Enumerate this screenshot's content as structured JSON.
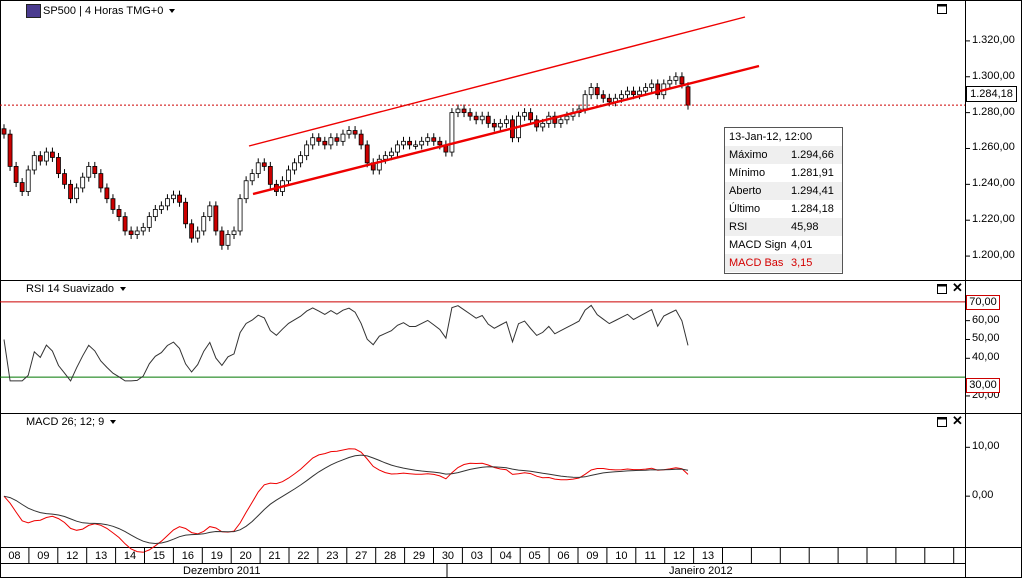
{
  "main_panel": {
    "title": "SP500 | 4 Horas TMG+0",
    "price_label": "1.284,18",
    "y_ticks": [
      "1.320,00",
      "1.300,00",
      "1.280,00",
      "1.260,00",
      "1.240,00",
      "1.220,00",
      "1.200,00"
    ]
  },
  "info_box": {
    "header": "13-Jan-12, 12:00",
    "rows": [
      {
        "label": "Máximo",
        "value": "1.294,66"
      },
      {
        "label": "Mínimo",
        "value": "1.281,91"
      },
      {
        "label": "Aberto",
        "value": "1.294,41"
      },
      {
        "label": "Último",
        "value": "1.284,18"
      },
      {
        "label": "RSI",
        "value": "45,98"
      },
      {
        "label": "MACD Sign",
        "value": "4,01"
      },
      {
        "label": "MACD Bas",
        "value": "3,15"
      }
    ]
  },
  "rsi_panel": {
    "title": "RSI 14 Suavizado",
    "upper_label": "70,00",
    "lower_label": "30,00",
    "y_ticks": [
      "60,00",
      "50,00",
      "40,00",
      "20,00"
    ]
  },
  "macd_panel": {
    "title": "MACD 26; 12; 9",
    "y_ticks": [
      "10,00",
      "0,00"
    ]
  },
  "x_axis": {
    "day_labels": [
      "08",
      "09",
      "12",
      "13",
      "14",
      "15",
      "16",
      "19",
      "20",
      "21",
      "22",
      "23",
      "27",
      "28",
      "29",
      "30",
      "03",
      "04",
      "05",
      "06",
      "09",
      "10",
      "11",
      "12",
      "13"
    ],
    "month_labels": [
      "Dezembro 2011",
      "Janeiro 2012"
    ]
  },
  "colors": {
    "bull": "#ffffff",
    "bear": "#cc0000",
    "channel": "#ee0000",
    "rsi_upper": "#cc0000",
    "rsi_lower": "#007700",
    "macd_signal": "#ee0000",
    "line": "#333333"
  },
  "chart_data": [
    {
      "type": "candlestick",
      "title": "SP500 | 4 Horas TMG+0",
      "ylim": [
        1190,
        1335
      ],
      "last_price": 1284.18,
      "close": [
        1268,
        1250,
        1241,
        1236,
        1248,
        1256,
        1253,
        1258,
        1255,
        1246,
        1240,
        1232,
        1238,
        1244,
        1250,
        1246,
        1238,
        1232,
        1226,
        1222,
        1214,
        1212,
        1214,
        1216,
        1222,
        1226,
        1228,
        1232,
        1234,
        1230,
        1218,
        1210,
        1214,
        1222,
        1228,
        1214,
        1206,
        1212,
        1214,
        1232,
        1242,
        1246,
        1252,
        1250,
        1240,
        1236,
        1242,
        1248,
        1252,
        1256,
        1262,
        1266,
        1264,
        1262,
        1266,
        1264,
        1268,
        1270,
        1268,
        1262,
        1252,
        1248,
        1254,
        1256,
        1258,
        1262,
        1264,
        1262,
        1262,
        1264,
        1266,
        1264,
        1262,
        1258,
        1280,
        1282,
        1280,
        1278,
        1276,
        1278,
        1274,
        1272,
        1274,
        1276,
        1266,
        1278,
        1280,
        1276,
        1272,
        1274,
        1278,
        1274,
        1276,
        1278,
        1280,
        1282,
        1290,
        1294,
        1290,
        1288,
        1286,
        1288,
        1290,
        1292,
        1290,
        1292,
        1294,
        1296,
        1290,
        1296,
        1298,
        1300,
        1296,
        1284.18
      ],
      "rsi_levels": [
        30,
        70
      ],
      "macd_params": [
        26,
        12,
        9
      ]
    }
  ]
}
